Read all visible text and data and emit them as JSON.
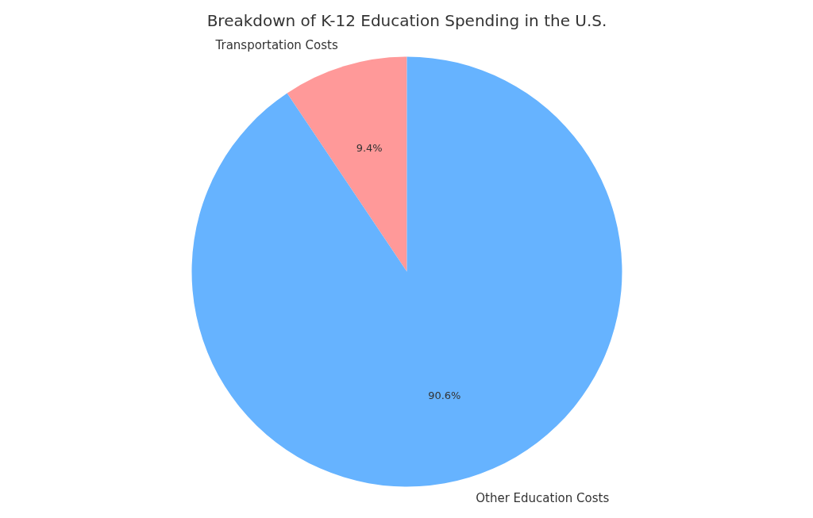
{
  "chart_data": {
    "type": "pie",
    "title": "Breakdown of K-12 Education Spending in the U.S.",
    "categories": [
      "Transportation Costs",
      "Other Education Costs"
    ],
    "values": [
      9.4,
      90.6
    ],
    "colors": [
      "#ff9999",
      "#66b3ff"
    ],
    "value_labels": [
      "9.4%",
      "90.6%"
    ]
  }
}
